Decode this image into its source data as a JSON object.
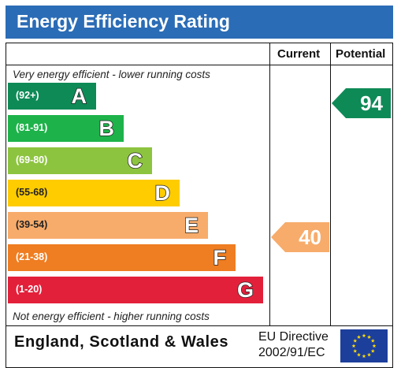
{
  "header": {
    "title": "Energy Efficiency Rating"
  },
  "columns": {
    "current": "Current",
    "potential": "Potential"
  },
  "notes": {
    "top": "Very energy efficient - lower running costs",
    "bottom": "Not energy efficient - higher running costs"
  },
  "bands": [
    {
      "range": "(92+)",
      "letter": "A",
      "color": "#0e8a57"
    },
    {
      "range": "(81-91)",
      "letter": "B",
      "color": "#1db34a"
    },
    {
      "range": "(69-80)",
      "letter": "C",
      "color": "#8dc43f"
    },
    {
      "range": "(55-68)",
      "letter": "D",
      "color": "#ffcc00"
    },
    {
      "range": "(39-54)",
      "letter": "E",
      "color": "#f7ac6b"
    },
    {
      "range": "(21-38)",
      "letter": "F",
      "color": "#ef7d21"
    },
    {
      "range": "(1-20)",
      "letter": "G",
      "color": "#e3203a"
    }
  ],
  "ratings": {
    "current": {
      "value": "40",
      "band": "E",
      "color": "#f7ac6b"
    },
    "potential": {
      "value": "94",
      "band": "A",
      "color": "#0e8a57"
    }
  },
  "footer": {
    "region": "England, Scotland & Wales",
    "directive_line1": "EU Directive",
    "directive_line2": "2002/91/EC"
  },
  "colors": {
    "header": "#2b6cb6",
    "eu_flag": "#1d3f9c",
    "eu_stars": "#ffdd00"
  }
}
